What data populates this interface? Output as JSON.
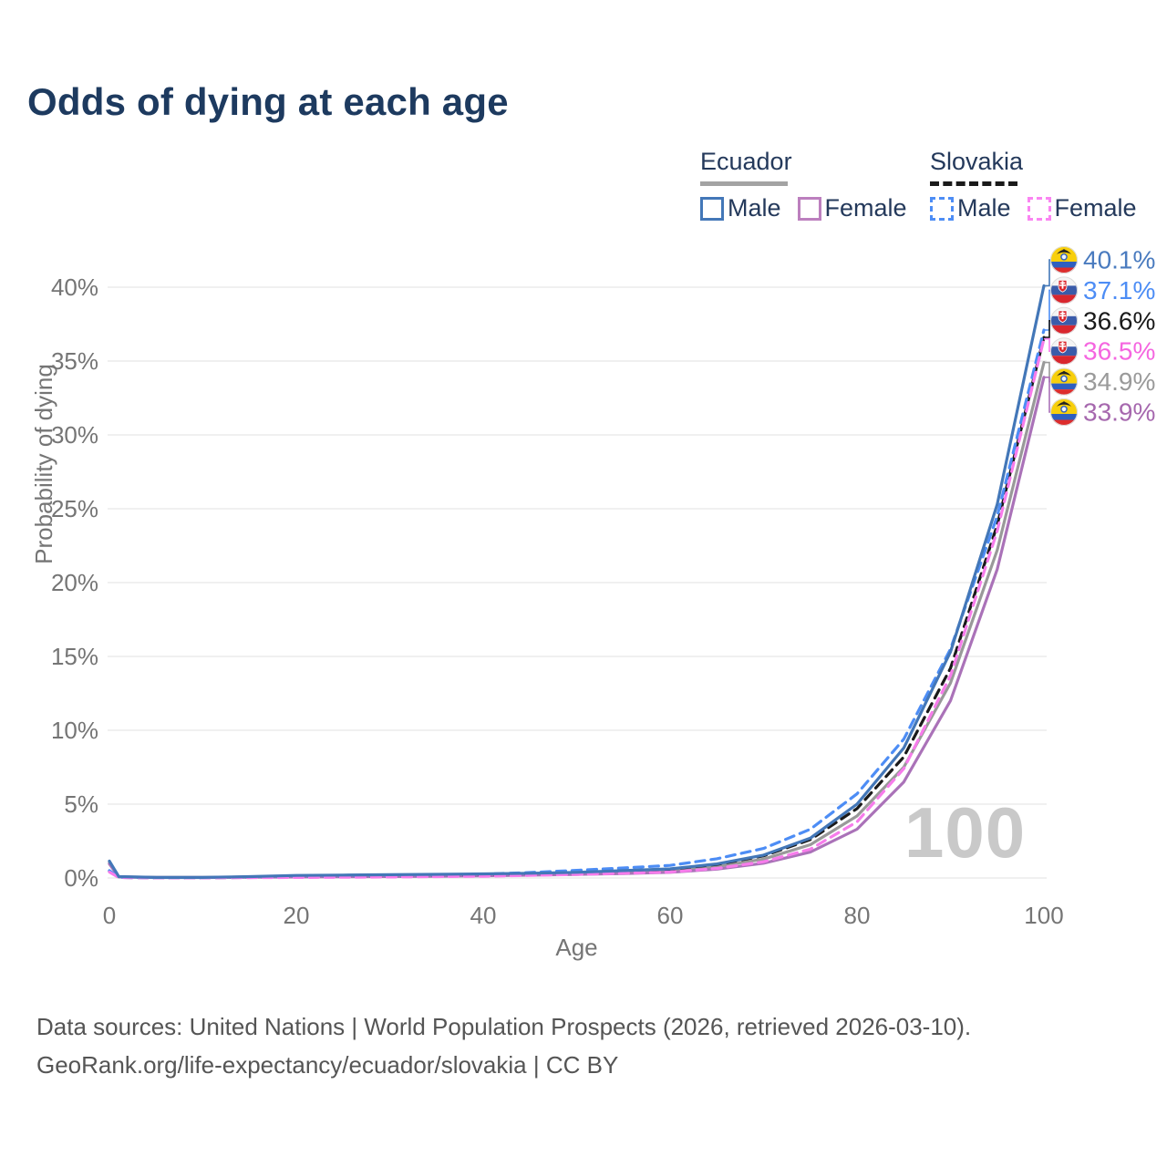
{
  "title": "Odds of dying at each age",
  "legend": {
    "groups": [
      {
        "name": "Ecuador",
        "line_style": "solid",
        "underline_color": "#a3a3a3",
        "items": [
          {
            "label": "Male",
            "color": "#4377b8",
            "line_style": "solid"
          },
          {
            "label": "Female",
            "color": "#bc7fbe",
            "line_style": "solid"
          }
        ]
      },
      {
        "name": "Slovakia",
        "line_style": "dashed",
        "underline_color": "#1a1a1a",
        "items": [
          {
            "label": "Male",
            "color": "#4d8df5",
            "line_style": "dashed"
          },
          {
            "label": "Female",
            "color": "#fa85f2",
            "line_style": "dashed"
          }
        ]
      }
    ]
  },
  "chart_data": {
    "type": "line",
    "title": "Odds of dying at each age",
    "xlabel": "Age",
    "ylabel": "Probability of dying",
    "xlim": [
      0,
      100
    ],
    "ylim": [
      0,
      42
    ],
    "x_ticks": [
      0,
      20,
      40,
      60,
      80,
      100
    ],
    "y_ticks": [
      0,
      5,
      10,
      15,
      20,
      25,
      30,
      35,
      40
    ],
    "y_tick_suffix": "%",
    "grid": "horizontal",
    "legend_position": "top-right",
    "x": [
      0,
      1,
      5,
      10,
      15,
      20,
      25,
      30,
      35,
      40,
      45,
      50,
      55,
      60,
      65,
      70,
      75,
      80,
      85,
      90,
      95,
      100
    ],
    "series": [
      {
        "name": "Ecuador Male",
        "country": "Ecuador",
        "sex": "male",
        "color": "#4377b8",
        "label_color": "#4a7bbf",
        "line_style": "solid",
        "flag": "ecuador",
        "end_label": "40.1%",
        "end_value": 40.1,
        "values": [
          1.15,
          0.09,
          0.04,
          0.04,
          0.09,
          0.17,
          0.2,
          0.22,
          0.25,
          0.28,
          0.32,
          0.38,
          0.5,
          0.62,
          0.95,
          1.55,
          2.7,
          5.0,
          8.8,
          15.3,
          25.3,
          40.1
        ]
      },
      {
        "name": "Ecuador Female",
        "country": "Ecuador",
        "sex": "female",
        "color": "#aa72b8",
        "label_color": "#a668ae",
        "line_style": "solid",
        "flag": "ecuador",
        "end_label": "33.9%",
        "end_value": 33.9,
        "values": [
          0.95,
          0.07,
          0.03,
          0.03,
          0.05,
          0.07,
          0.08,
          0.1,
          0.12,
          0.15,
          0.19,
          0.24,
          0.3,
          0.38,
          0.6,
          1.0,
          1.75,
          3.3,
          6.5,
          12.0,
          20.9,
          33.9
        ]
      },
      {
        "name": "Ecuador Both sexes",
        "country": "Ecuador",
        "sex": "both",
        "color": "#999999",
        "label_color": "#9a9a9a",
        "line_style": "solid",
        "flag": "ecuador",
        "end_label": "34.9%",
        "end_value": 34.9,
        "values": [
          1.05,
          0.08,
          0.035,
          0.035,
          0.07,
          0.12,
          0.14,
          0.16,
          0.18,
          0.21,
          0.25,
          0.31,
          0.4,
          0.5,
          0.78,
          1.28,
          2.25,
          4.2,
          7.5,
          13.2,
          22.2,
          34.9
        ]
      },
      {
        "name": "Slovakia Male",
        "country": "Slovakia",
        "sex": "male",
        "color": "#4d8df5",
        "label_color": "#4d8df5",
        "line_style": "dashed",
        "flag": "slovakia",
        "end_label": "37.1%",
        "end_value": 37.1,
        "values": [
          0.5,
          0.04,
          0.02,
          0.02,
          0.06,
          0.11,
          0.13,
          0.15,
          0.19,
          0.26,
          0.37,
          0.52,
          0.68,
          0.85,
          1.3,
          2.0,
          3.3,
          5.7,
          9.4,
          15.5,
          24.5,
          37.1
        ]
      },
      {
        "name": "Slovakia Female",
        "country": "Slovakia",
        "sex": "female",
        "color": "#f77ceb",
        "label_color": "#f566e0",
        "line_style": "dashed",
        "flag": "slovakia",
        "end_label": "36.5%",
        "end_value": 36.5,
        "values": [
          0.4,
          0.03,
          0.012,
          0.012,
          0.025,
          0.04,
          0.05,
          0.07,
          0.09,
          0.12,
          0.17,
          0.24,
          0.32,
          0.4,
          0.65,
          1.1,
          1.95,
          3.8,
          7.4,
          13.7,
          23.5,
          36.5
        ]
      },
      {
        "name": "Slovakia Both sexes",
        "country": "Slovakia",
        "sex": "both",
        "color": "#1a1a1a",
        "label_color": "#1a1a1a",
        "line_style": "dashed",
        "flag": "slovakia",
        "end_label": "36.6%",
        "end_value": 36.6,
        "values": [
          0.45,
          0.035,
          0.016,
          0.016,
          0.04,
          0.08,
          0.09,
          0.11,
          0.14,
          0.19,
          0.27,
          0.38,
          0.48,
          0.6,
          0.92,
          1.5,
          2.6,
          4.7,
          8.2,
          14.2,
          23.9,
          36.6
        ]
      }
    ]
  },
  "watermark": "100",
  "footer": {
    "line1": "Data sources: United Nations | World Population Prospects (2026, retrieved 2026-03-10).",
    "line2": "GeoRank.org/life-expectancy/ecuador/slovakia | CC BY"
  }
}
